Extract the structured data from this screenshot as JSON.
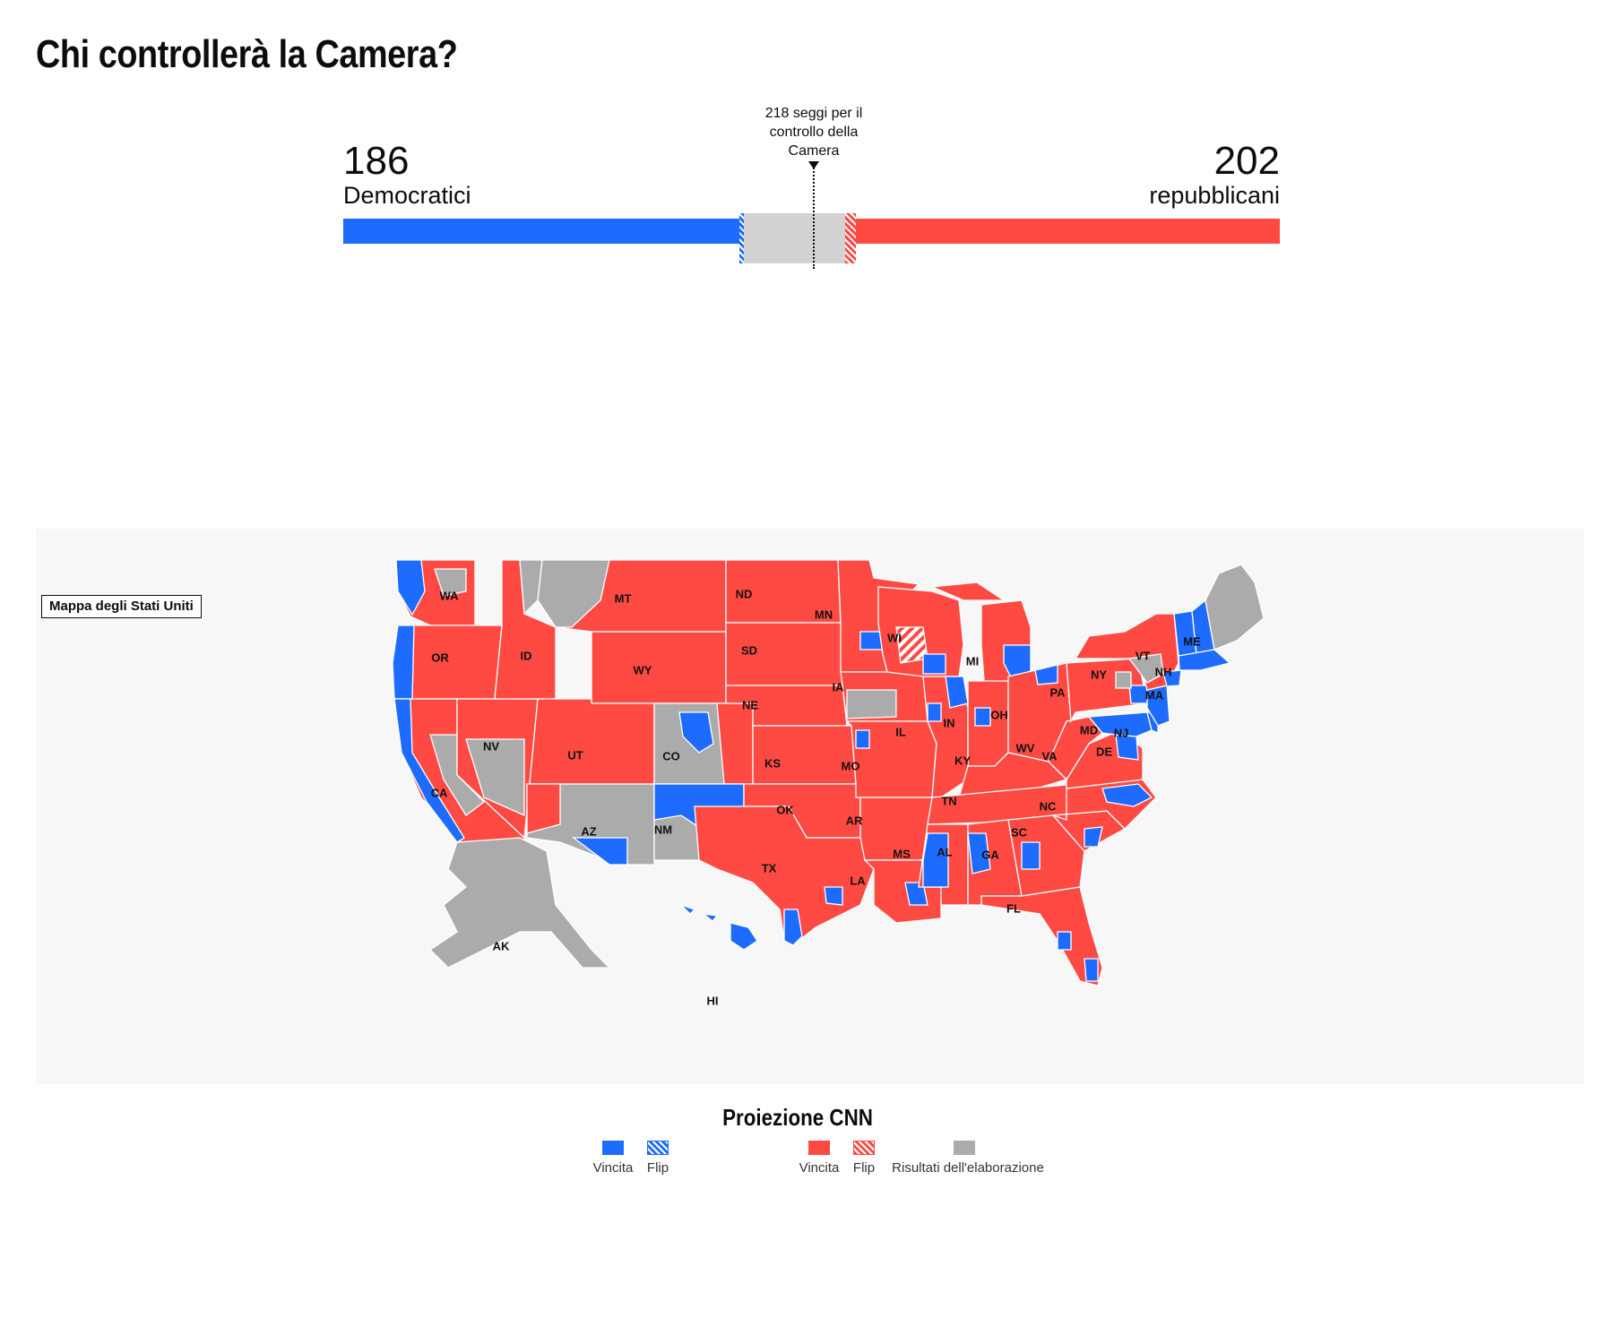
{
  "title": "Chi controllerà la Camera?",
  "balance": {
    "dem_count": "186",
    "dem_label": "Democratici",
    "rep_count": "202",
    "rep_label": "repubblicani",
    "threshold_label": "218 seggi per il controllo della Camera",
    "total_seats": 435,
    "dem_seats": 186,
    "dem_flip_seats": 2,
    "rep_seats": 202,
    "rep_flip_seats": 5,
    "majority": 218
  },
  "map": {
    "button_label": "Mappa degli Stati Uniti",
    "states": [
      {
        "abbr": "WA",
        "status": "rep"
      },
      {
        "abbr": "OR",
        "status": "rep"
      },
      {
        "abbr": "CA",
        "status": "rep"
      },
      {
        "abbr": "NV",
        "status": "rep"
      },
      {
        "abbr": "ID",
        "status": "rep"
      },
      {
        "abbr": "MT",
        "status": "rep"
      },
      {
        "abbr": "WY",
        "status": "rep"
      },
      {
        "abbr": "UT",
        "status": "rep"
      },
      {
        "abbr": "CO",
        "status": "und"
      },
      {
        "abbr": "AZ",
        "status": "und"
      },
      {
        "abbr": "NM",
        "status": "dem"
      },
      {
        "abbr": "ND",
        "status": "rep"
      },
      {
        "abbr": "SD",
        "status": "rep"
      },
      {
        "abbr": "NE",
        "status": "rep"
      },
      {
        "abbr": "KS",
        "status": "rep"
      },
      {
        "abbr": "OK",
        "status": "rep"
      },
      {
        "abbr": "TX",
        "status": "rep"
      },
      {
        "abbr": "MN",
        "status": "rep"
      },
      {
        "abbr": "IA",
        "status": "rep"
      },
      {
        "abbr": "MO",
        "status": "rep"
      },
      {
        "abbr": "AR",
        "status": "rep"
      },
      {
        "abbr": "LA",
        "status": "rep"
      },
      {
        "abbr": "WI",
        "status": "rep"
      },
      {
        "abbr": "IL",
        "status": "rep"
      },
      {
        "abbr": "MI",
        "status": "rep"
      },
      {
        "abbr": "IN",
        "status": "rep"
      },
      {
        "abbr": "OH",
        "status": "rep"
      },
      {
        "abbr": "KY",
        "status": "rep"
      },
      {
        "abbr": "TN",
        "status": "rep"
      },
      {
        "abbr": "MS",
        "status": "rep"
      },
      {
        "abbr": "AL",
        "status": "rep"
      },
      {
        "abbr": "GA",
        "status": "rep"
      },
      {
        "abbr": "FL",
        "status": "rep"
      },
      {
        "abbr": "SC",
        "status": "rep"
      },
      {
        "abbr": "NC",
        "status": "rep"
      },
      {
        "abbr": "VA",
        "status": "rep"
      },
      {
        "abbr": "WV",
        "status": "rep"
      },
      {
        "abbr": "PA",
        "status": "rep"
      },
      {
        "abbr": "NY",
        "status": "rep"
      },
      {
        "abbr": "VT",
        "status": "dem"
      },
      {
        "abbr": "NH",
        "status": "dem"
      },
      {
        "abbr": "ME",
        "status": "und"
      },
      {
        "abbr": "MA",
        "status": "dem"
      },
      {
        "abbr": "NJ",
        "status": "dem"
      },
      {
        "abbr": "DE",
        "status": "dem"
      },
      {
        "abbr": "MD",
        "status": "dem"
      },
      {
        "abbr": "AK",
        "status": "und"
      },
      {
        "abbr": "HI",
        "status": "dem"
      }
    ]
  },
  "legend": {
    "title": "Proiezione CNN",
    "items": [
      {
        "label": "Vincita",
        "kind": "dem-win"
      },
      {
        "label": "Flip",
        "kind": "dem-flip"
      },
      {
        "label": "Vincita",
        "kind": "rep-win"
      },
      {
        "label": "Flip",
        "kind": "rep-flip"
      },
      {
        "label": "Risultati dell'elaborazione",
        "kind": "undecided"
      }
    ]
  },
  "colors": {
    "dem": "#1e6cff",
    "rep": "#ff4a43",
    "undecided": "#ababab",
    "undecided_bar": "#d2d2d2"
  }
}
